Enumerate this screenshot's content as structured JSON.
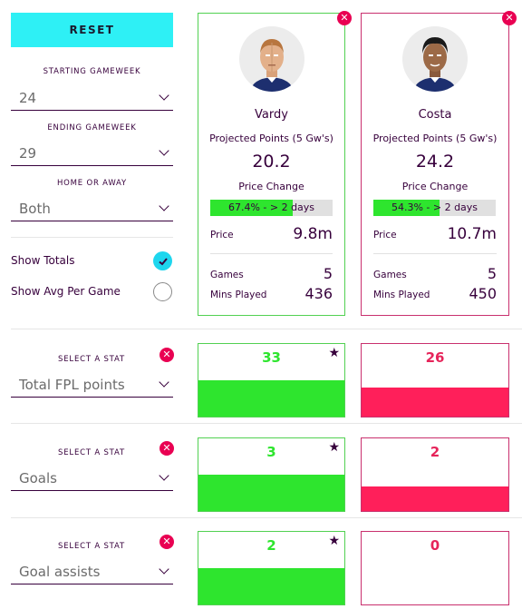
{
  "controls": {
    "reset_label": "RESET",
    "starting_gameweek": {
      "label": "STARTING GAMEWEEK",
      "value": "24"
    },
    "ending_gameweek": {
      "label": "ENDING GAMEWEEK",
      "value": "29"
    },
    "home_or_away": {
      "label": "HOME OR AWAY",
      "value": "Both"
    },
    "show_totals": {
      "label": "Show Totals",
      "checked": true
    },
    "show_avg": {
      "label": "Show Avg Per Game",
      "checked": false
    }
  },
  "players": [
    {
      "name": "Vardy",
      "projected_label": "Projected Points (5 Gw's)",
      "projected": "20.2",
      "price_change_label": "Price Change",
      "price_change_text": "67.4% - > 2 days",
      "price_change_pct": 67.4,
      "price_label": "Price",
      "price": "9.8m",
      "games_label": "Games",
      "games": "5",
      "mins_label": "Mins Played",
      "mins": "436",
      "theme": "#52d152"
    },
    {
      "name": "Costa",
      "projected_label": "Projected Points (5 Gw's)",
      "projected": "24.2",
      "price_change_label": "Price Change",
      "price_change_text": "54.3% - > 2 days",
      "price_change_pct": 54.3,
      "price_label": "Price",
      "price": "10.7m",
      "games_label": "Games",
      "games": "5",
      "mins_label": "Mins Played",
      "mins": "450",
      "theme": "#c9306e"
    }
  ],
  "stats": [
    {
      "label": "SELECT A STAT",
      "stat": "Total FPL points",
      "values": [
        "33",
        "26"
      ],
      "winner": 0
    },
    {
      "label": "SELECT A STAT",
      "stat": "Goals",
      "values": [
        "3",
        "2"
      ],
      "winner": 0
    },
    {
      "label": "SELECT A STAT",
      "stat": "Goal assists",
      "values": [
        "2",
        "0"
      ],
      "winner": 0
    }
  ],
  "colors": {
    "accent_cyan": "#2ef0f5",
    "green": "#2ee52e",
    "pink": "#ff1f5a",
    "purple": "#37003c",
    "remove_red": "#e90052"
  },
  "icons": {
    "remove": "close-circle-icon",
    "checked": "check-circle-icon",
    "unchecked": "empty-circle-icon",
    "dropdown": "chevron-down-icon",
    "winner": "star-icon"
  }
}
